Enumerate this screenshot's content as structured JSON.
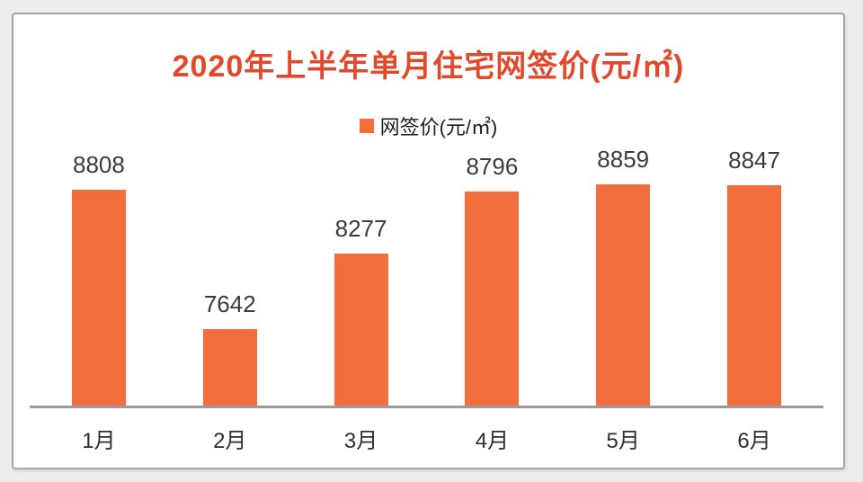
{
  "title": "2020年上半年单月住宅网签价(元/㎡)",
  "legend": {
    "label": "网签价(元/㎡)"
  },
  "colors": {
    "bar": "#F26E3C",
    "title": "#E2492B",
    "value_text": "#3B3B3B",
    "axis_line": "#9B9B9B",
    "panel_border": "#A6A6A6",
    "panel_bg": "#FFFFFF",
    "page_bg": "#EDEDED"
  },
  "chart_data": {
    "type": "bar",
    "categories": [
      "1月",
      "2月",
      "3月",
      "4月",
      "5月",
      "6月"
    ],
    "values": [
      8808,
      7642,
      8277,
      8796,
      8859,
      8847
    ],
    "title": "2020年上半年单月住宅网签价(元/㎡)",
    "xlabel": "",
    "ylabel": "网签价(元/㎡)",
    "ylim": [
      7000,
      9000
    ],
    "grid": false,
    "legend_entries": [
      "网签价(元/㎡)"
    ],
    "legend_position": "top",
    "data_labels": true
  }
}
